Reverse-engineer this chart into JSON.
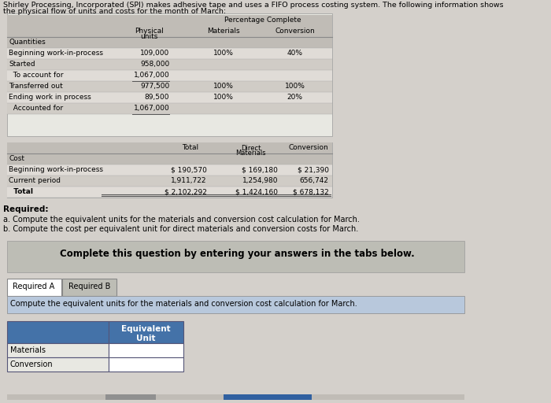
{
  "title_line1": "Shirley Processing, Incorporated (SPI) makes adhesive tape and uses a FIFO process costing system. The following information shows",
  "title_line2": "the physical flow of units and costs for the month of March:",
  "bg_color": "#d4d0cb",
  "table1_rows": [
    [
      "Quantities",
      "",
      "",
      ""
    ],
    [
      "Beginning work-in-process",
      "109,000",
      "100%",
      "40%"
    ],
    [
      "Started",
      "958,000",
      "",
      ""
    ],
    [
      "  To account for",
      "1,067,000",
      "",
      ""
    ],
    [
      "Transferred out",
      "977,500",
      "100%",
      "100%"
    ],
    [
      "Ending work in process",
      "89,500",
      "100%",
      "20%"
    ],
    [
      "  Accounted for",
      "1,067,000",
      "",
      ""
    ]
  ],
  "table2_rows": [
    [
      "Cost",
      "",
      "",
      ""
    ],
    [
      "Beginning work-in-process",
      "$ 190,570",
      "$ 169,180",
      "$ 21,390"
    ],
    [
      "Current period",
      "1,911,722",
      "1,254,980",
      "656,742"
    ],
    [
      "  Total",
      "$ 2,102,292",
      "$ 1,424,160",
      "$ 678,132"
    ]
  ],
  "required_text": "Required:",
  "req_a": "a. Compute the equivalent units for the materials and conversion cost calculation for March.",
  "req_b": "b. Compute the cost per equivalent unit for direct materials and conversion costs for March.",
  "complete_text": "Complete this question by entering your answers in the tabs below.",
  "tab1": "Required A",
  "tab2": "Required B",
  "instruction": "Compute the equivalent units for the materials and conversion cost calculation for March.",
  "equiv_header": "Equivalent\nUnit",
  "row_labels": [
    "Materials",
    "Conversion"
  ],
  "white": "#ffffff",
  "black": "#000000",
  "light_gray": "#e8e8e2",
  "med_gray": "#c8c4be",
  "dark_gray": "#a8a49e",
  "blue_header_bg": "#4472a8",
  "blue_tab_border": "#4472a8",
  "instruction_bg": "#b8c8dc",
  "complete_bg": "#bdbdb5",
  "scrollbar_gray": "#c0bcb6",
  "scrollbar_blue": "#3060a0",
  "row_dark": "#d0ccc6",
  "row_light": "#e0dcd7",
  "row_header": "#c0bcb6"
}
